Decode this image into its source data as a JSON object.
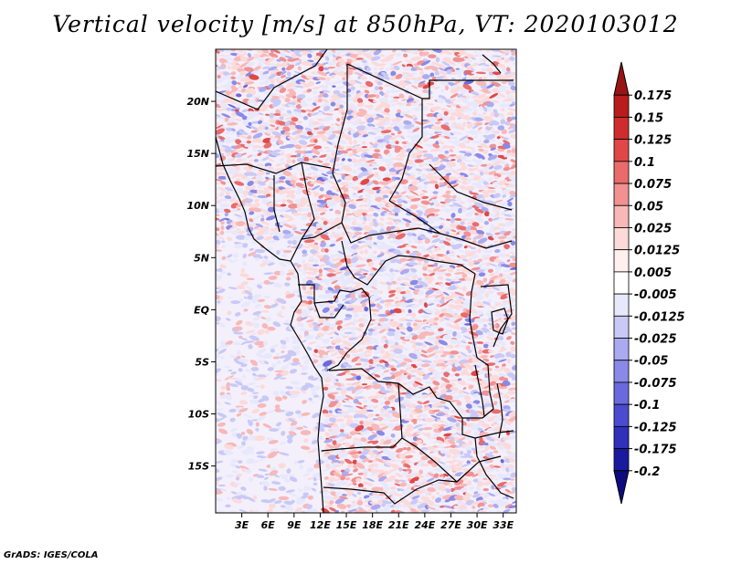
{
  "title": "Vertical velocity [m/s] at 850hPa, VT: 2020103012",
  "footer": "GrADS: IGES/COLA",
  "map": {
    "lon_ticks": [
      "3E",
      "6E",
      "9E",
      "12E",
      "15E",
      "18E",
      "21E",
      "24E",
      "27E",
      "30E",
      "33E"
    ],
    "lat_ticks": [
      "20N",
      "15N",
      "10N",
      "5N",
      "EQ",
      "5S",
      "10S",
      "15S"
    ]
  },
  "colorbar": {
    "labels": [
      "0.175",
      "0.15",
      "0.125",
      "0.1",
      "0.075",
      "0.05",
      "0.025",
      "0.0125",
      "0.005",
      "-0.005",
      "-0.0125",
      "-0.025",
      "-0.05",
      "-0.075",
      "-0.1",
      "-0.125",
      "-0.175",
      "-0.2"
    ],
    "colors": [
      "#9b1414",
      "#b81c1c",
      "#cf2d2d",
      "#e04848",
      "#ea6b6b",
      "#f29191",
      "#f8b8b8",
      "#fcdada",
      "#fff0f0",
      "#ffffff",
      "#e8e8fc",
      "#c9c9f6",
      "#aaaaf0",
      "#8989e8",
      "#6a6ade",
      "#4b4bd0",
      "#3030bb",
      "#1a1a9f",
      "#0c0c80"
    ]
  },
  "chart_data": {
    "type": "heatmap",
    "title": "Vertical velocity [m/s] at 850hPa, VT: 2020103012",
    "xlabel": "",
    "ylabel": "",
    "x_ticks": [
      "3E",
      "6E",
      "9E",
      "12E",
      "15E",
      "18E",
      "21E",
      "24E",
      "27E",
      "30E",
      "33E"
    ],
    "y_ticks": [
      "20N",
      "15N",
      "10N",
      "5N",
      "EQ",
      "5S",
      "10S",
      "15S"
    ],
    "xlim": [
      0,
      34.5
    ],
    "ylim": [
      -19.5,
      25
    ],
    "colorbar_levels": [
      -0.2,
      -0.175,
      -0.125,
      -0.1,
      -0.075,
      -0.05,
      -0.025,
      -0.0125,
      -0.005,
      0.005,
      0.0125,
      0.025,
      0.05,
      0.075,
      0.1,
      0.125,
      0.15,
      0.175
    ]
  }
}
